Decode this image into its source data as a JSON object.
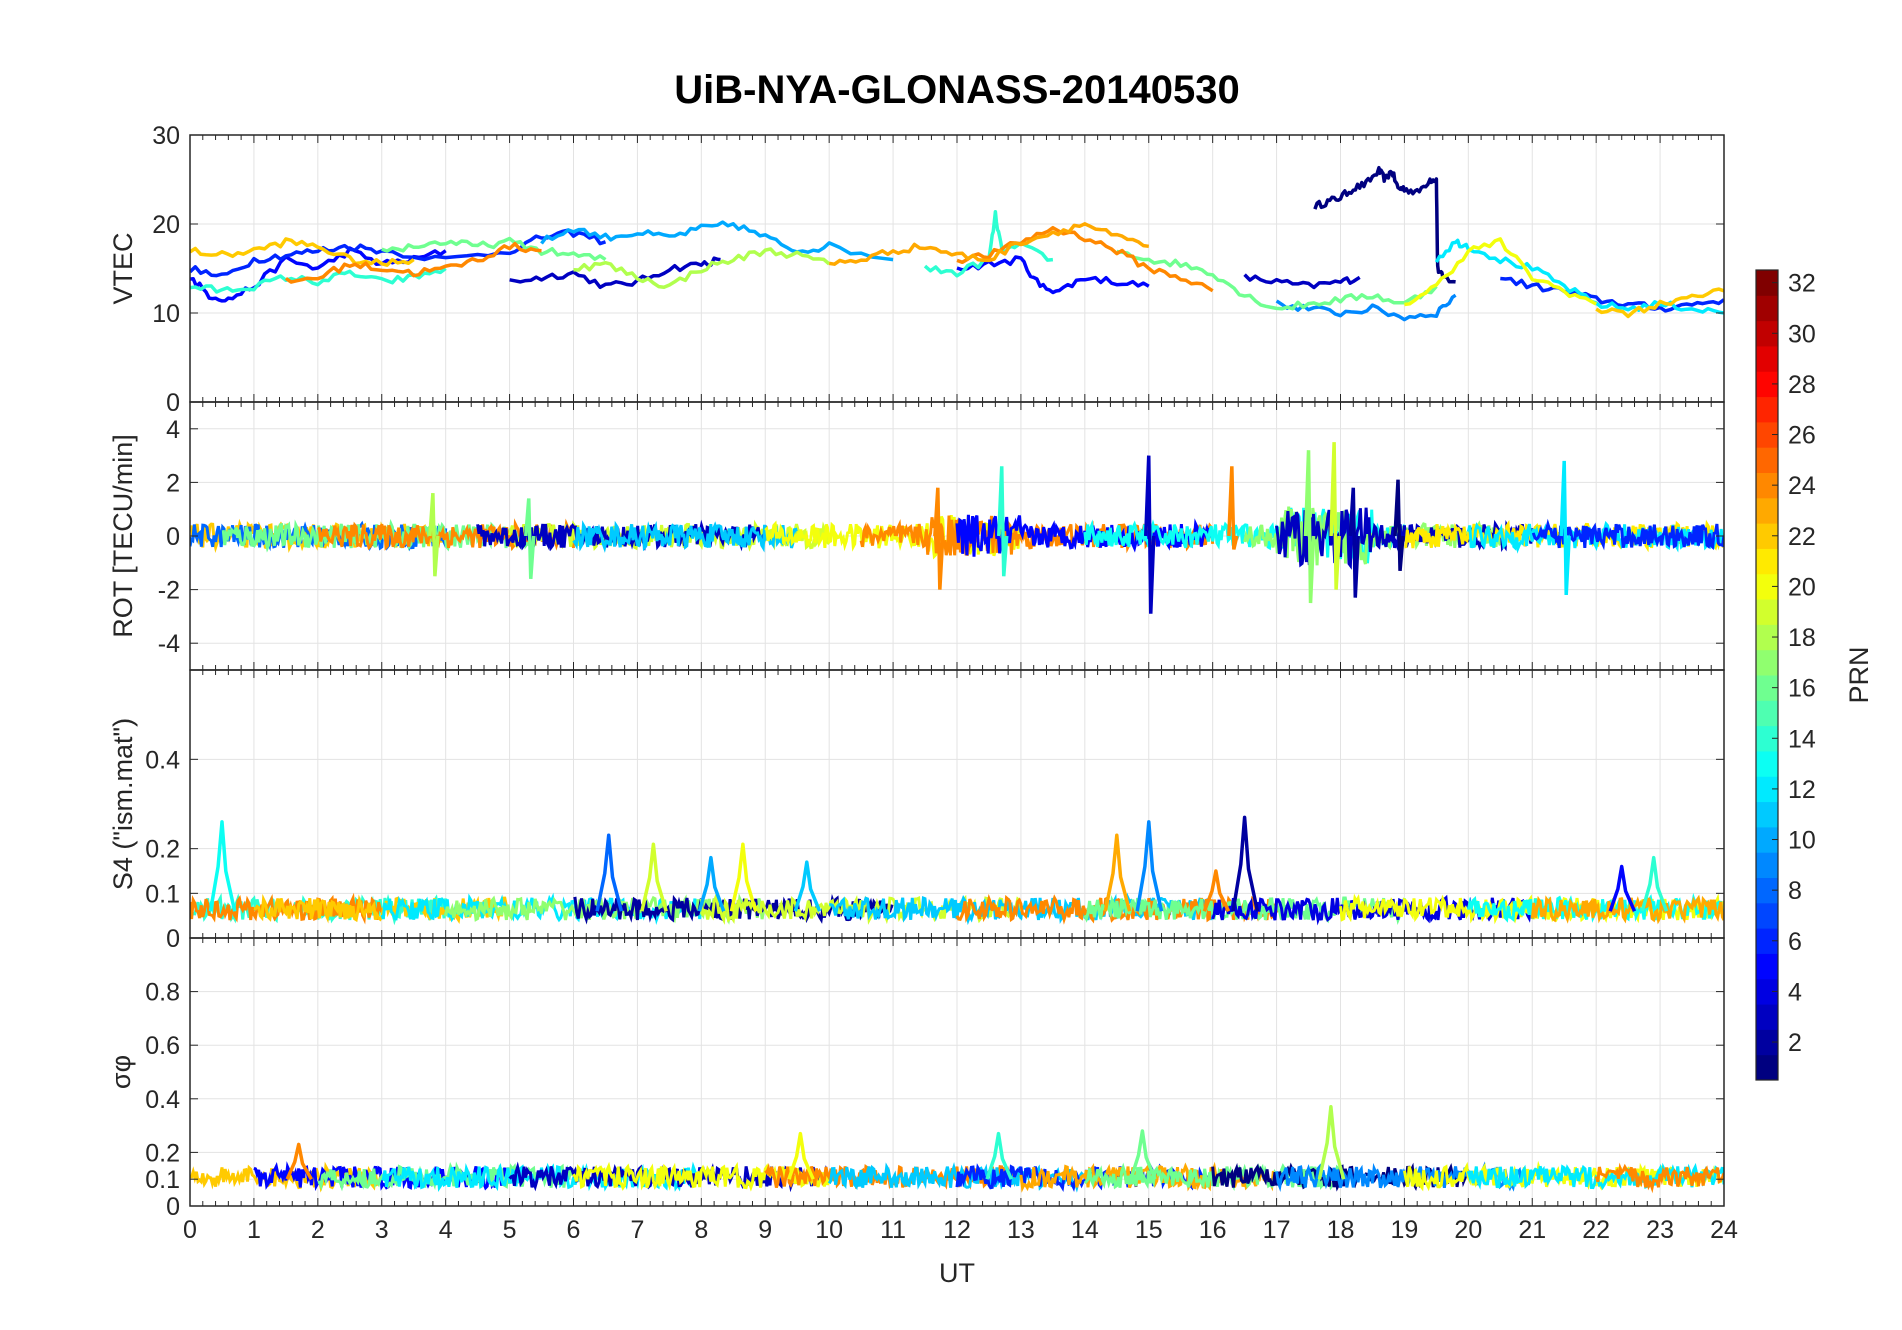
{
  "chart_data": {
    "type": "line",
    "title": "UiB-NYA-GLONASS-20140530",
    "xlabel": "UT",
    "xlim": [
      0,
      24
    ],
    "xticks": [
      "0",
      "1",
      "2",
      "3",
      "4",
      "5",
      "6",
      "7",
      "8",
      "9",
      "10",
      "11",
      "12",
      "13",
      "14",
      "15",
      "16",
      "17",
      "18",
      "19",
      "20",
      "21",
      "22",
      "23",
      "24"
    ],
    "grid": true,
    "panels": [
      {
        "ylabel": "VTEC",
        "ylim": [
          0,
          30
        ],
        "yticks": [
          "0",
          "10",
          "20",
          "30"
        ],
        "lines": [
          {
            "prn": 1,
            "x": [
              17.6,
              17.8,
              18.0,
              18.2,
              18.4,
              18.6,
              18.7,
              18.8,
              18.9,
              19.0,
              19.2,
              19.4,
              19.5,
              19.52,
              19.6,
              19.8
            ],
            "y": [
              22,
              22.5,
              23,
              24,
              24.5,
              26,
              25,
              26,
              24,
              24,
              23.5,
              25,
              25,
              15,
              14,
              13.5
            ]
          },
          {
            "prn": 3,
            "x": [
              5.0,
              5.5,
              6.0,
              6.5,
              7.0,
              7.5,
              8.0,
              8.3
            ],
            "y": [
              13.5,
              14,
              14.5,
              13,
              13.5,
              15,
              15.5,
              16
            ]
          },
          {
            "prn": 3,
            "x": [
              16.5,
              17.0,
              17.5,
              18.0,
              18.3
            ],
            "y": [
              14,
              13.5,
              13,
              13.5,
              14
            ]
          },
          {
            "prn": 5,
            "x": [
              0.0,
              0.3,
              0.6,
              1.0,
              1.5,
              2.0,
              2.5,
              3.0,
              3.5,
              4.0
            ],
            "y": [
              14,
              12,
              11.5,
              13,
              16,
              15,
              17,
              15.5,
              16,
              17
            ]
          },
          {
            "prn": 5,
            "x": [
              12.0,
              12.5,
              13.0,
              13.3,
              13.6,
              14.0,
              14.5,
              15.0
            ],
            "y": [
              15,
              15.5,
              16,
              13,
              12.5,
              14,
              13.5,
              13
            ]
          },
          {
            "prn": 6,
            "x": [
              0.0,
              0.5,
              1.0,
              1.5,
              2.0,
              2.5,
              3.0,
              4.0,
              5.0,
              5.5,
              6.0,
              6.5
            ],
            "y": [
              15,
              14,
              16,
              16.5,
              17,
              17.5,
              17,
              16,
              17,
              18.5,
              19,
              18
            ]
          },
          {
            "prn": 6,
            "x": [
              20.5,
              21.0,
              21.5,
              22.0,
              22.5,
              23.0,
              23.5,
              24.0
            ],
            "y": [
              14,
              13,
              12.5,
              11.5,
              11,
              10.5,
              11,
              11.5
            ]
          },
          {
            "prn": 9,
            "x": [
              17.0,
              17.5,
              18.0,
              18.5,
              19.0,
              19.5,
              19.8
            ],
            "y": [
              11,
              10.5,
              10,
              10.5,
              9.5,
              10,
              12
            ]
          },
          {
            "prn": 10,
            "x": [
              5.5,
              6.0,
              6.5,
              7.0,
              7.5,
              8.0,
              8.5,
              9.0,
              9.5,
              10.0,
              11.0
            ],
            "y": [
              18,
              19.5,
              18.5,
              19,
              18.5,
              19.5,
              20,
              18.5,
              17,
              17.5,
              16
            ]
          },
          {
            "prn": 12,
            "x": [
              19.5,
              19.8,
              20.0,
              20.5,
              21.0,
              21.5,
              22.0,
              22.5,
              23.0,
              23.5,
              24.0
            ],
            "y": [
              16,
              18,
              17.5,
              16,
              15,
              13,
              11,
              10.5,
              11,
              10.5,
              10
            ]
          },
          {
            "prn": 14,
            "x": [
              0.0,
              0.5,
              1.0,
              1.5,
              2.0,
              2.5,
              3.0,
              3.5,
              4.0
            ],
            "y": [
              13,
              12.5,
              13,
              14,
              13.5,
              14.5,
              13.5,
              14,
              15
            ]
          },
          {
            "prn": 14,
            "x": [
              11.5,
              12.0,
              12.5,
              12.6,
              12.7,
              13.0,
              13.5
            ],
            "y": [
              15,
              14.5,
              16,
              21,
              17,
              17.5,
              16
            ]
          },
          {
            "prn": 16,
            "x": [
              3.0,
              3.5,
              4.0,
              4.5,
              5.0,
              5.5,
              6.0,
              6.5
            ],
            "y": [
              17,
              17.5,
              18,
              17.5,
              18,
              17,
              16.5,
              16
            ]
          },
          {
            "prn": 16,
            "x": [
              14.5,
              15.0,
              15.5,
              16.0,
              16.5,
              17.0,
              17.5,
              18.0,
              18.5,
              19.0,
              19.5
            ],
            "y": [
              17,
              16,
              15.5,
              14.5,
              12,
              10.5,
              11,
              11.5,
              12,
              11,
              13
            ]
          },
          {
            "prn": 18,
            "x": [
              6.0,
              6.5,
              7.0,
              7.5,
              8.0,
              8.5,
              9.0,
              9.5,
              10.0
            ],
            "y": [
              15,
              15.5,
              14,
              13,
              15,
              16,
              17,
              16.5,
              15.5
            ]
          },
          {
            "prn": 20,
            "x": [
              19.0,
              19.5,
              20.0,
              20.5,
              21.0,
              21.5,
              22.0
            ],
            "y": [
              11,
              13,
              17,
              18,
              14,
              12.5,
              11
            ]
          },
          {
            "prn": 22,
            "x": [
              0.0,
              0.5,
              1.0,
              1.5,
              2.0,
              2.5,
              3.0,
              3.5
            ],
            "y": [
              17,
              16.5,
              17,
              18,
              17.5,
              16,
              15.5,
              16
            ]
          },
          {
            "prn": 22,
            "x": [
              22.0,
              22.5,
              23.0,
              23.5,
              24.0
            ],
            "y": [
              10.5,
              10,
              11,
              12,
              12.5
            ]
          },
          {
            "prn": 24,
            "x": [
              1.5,
              2.0,
              2.5,
              3.0,
              3.5,
              4.0,
              4.5,
              5.0,
              5.5
            ],
            "y": [
              13.5,
              14,
              15.5,
              15,
              14.5,
              15,
              16,
              17.5,
              17
            ]
          },
          {
            "prn": 24,
            "x": [
              12.0,
              12.5,
              13.0,
              13.5,
              14.0,
              14.5,
              15.0,
              15.5,
              16.0
            ],
            "y": [
              16,
              16.5,
              18,
              19.5,
              18.5,
              17,
              15,
              14,
              12.5
            ]
          },
          {
            "prn": 23,
            "x": [
              10.0,
              10.5,
              11.0,
              11.5,
              12.0,
              12.5,
              13.0,
              13.5,
              14.0,
              14.5,
              15.0
            ],
            "y": [
              15.5,
              16,
              17,
              17.5,
              16.5,
              16,
              18,
              19,
              20,
              18.5,
              17.5
            ]
          }
        ]
      },
      {
        "ylabel": "ROT [TECU/min]",
        "ylim": [
          -5,
          5
        ],
        "yticks": [
          "-4",
          "-2",
          "0",
          "2",
          "4"
        ],
        "spikes": [
          {
            "prn": 3,
            "x": 15.0,
            "ymin": -2.9,
            "ymax": 3.0
          },
          {
            "prn": 24,
            "x": 16.3,
            "ymin": -0.5,
            "ymax": 2.6
          },
          {
            "prn": 17,
            "x": 17.5,
            "ymin": -2.5,
            "ymax": 3.2
          },
          {
            "prn": 19,
            "x": 17.9,
            "ymin": -2.0,
            "ymax": 3.5
          },
          {
            "prn": 2,
            "x": 18.2,
            "ymin": -2.3,
            "ymax": 1.8
          },
          {
            "prn": 1,
            "x": 18.9,
            "ymin": -1.3,
            "ymax": 2.1
          },
          {
            "prn": 14,
            "x": 12.7,
            "ymin": -1.5,
            "ymax": 2.6
          },
          {
            "prn": 24,
            "x": 11.7,
            "ymin": -2.0,
            "ymax": 1.8
          },
          {
            "prn": 12,
            "x": 21.5,
            "ymin": -2.2,
            "ymax": 2.8
          },
          {
            "prn": 18,
            "x": 3.8,
            "ymin": -1.5,
            "ymax": 1.6
          },
          {
            "prn": 16,
            "x": 5.3,
            "ymin": -1.6,
            "ymax": 1.4
          }
        ]
      },
      {
        "ylabel": "S4 (\"ism.mat\")",
        "ylim": [
          0,
          0.6
        ],
        "yticks": [
          "0",
          "0.1",
          "0.2",
          "0.4"
        ],
        "peaks": [
          {
            "prn": 13,
            "x": 0.5,
            "y": 0.26
          },
          {
            "prn": 8,
            "x": 6.55,
            "y": 0.23
          },
          {
            "prn": 19,
            "x": 7.25,
            "y": 0.21
          },
          {
            "prn": 10,
            "x": 8.15,
            "y": 0.18
          },
          {
            "prn": 20,
            "x": 8.65,
            "y": 0.21
          },
          {
            "prn": 11,
            "x": 9.65,
            "y": 0.17
          },
          {
            "prn": 23,
            "x": 14.5,
            "y": 0.23
          },
          {
            "prn": 9,
            "x": 15.0,
            "y": 0.26
          },
          {
            "prn": 24,
            "x": 16.05,
            "y": 0.15
          },
          {
            "prn": 2,
            "x": 16.5,
            "y": 0.27
          },
          {
            "prn": 5,
            "x": 22.4,
            "y": 0.16
          },
          {
            "prn": 14,
            "x": 22.9,
            "y": 0.18
          }
        ]
      },
      {
        "ylabel": "σφ",
        "ylim": [
          0,
          1
        ],
        "yticks": [
          "0",
          "0.1",
          "0.2",
          "0.4",
          "0.6",
          "0.8"
        ],
        "peaks": [
          {
            "prn": 24,
            "x": 1.7,
            "y": 0.23
          },
          {
            "prn": 20,
            "x": 9.55,
            "y": 0.27
          },
          {
            "prn": 14,
            "x": 12.65,
            "y": 0.27
          },
          {
            "prn": 16,
            "x": 14.9,
            "y": 0.28
          },
          {
            "prn": 18,
            "x": 17.85,
            "y": 0.37
          }
        ]
      }
    ],
    "colorbar": {
      "label": "PRN",
      "range": [
        1,
        32
      ],
      "ticks": [
        "2",
        "4",
        "6",
        "8",
        "10",
        "12",
        "14",
        "16",
        "18",
        "20",
        "22",
        "24",
        "26",
        "28",
        "30",
        "32"
      ]
    }
  }
}
